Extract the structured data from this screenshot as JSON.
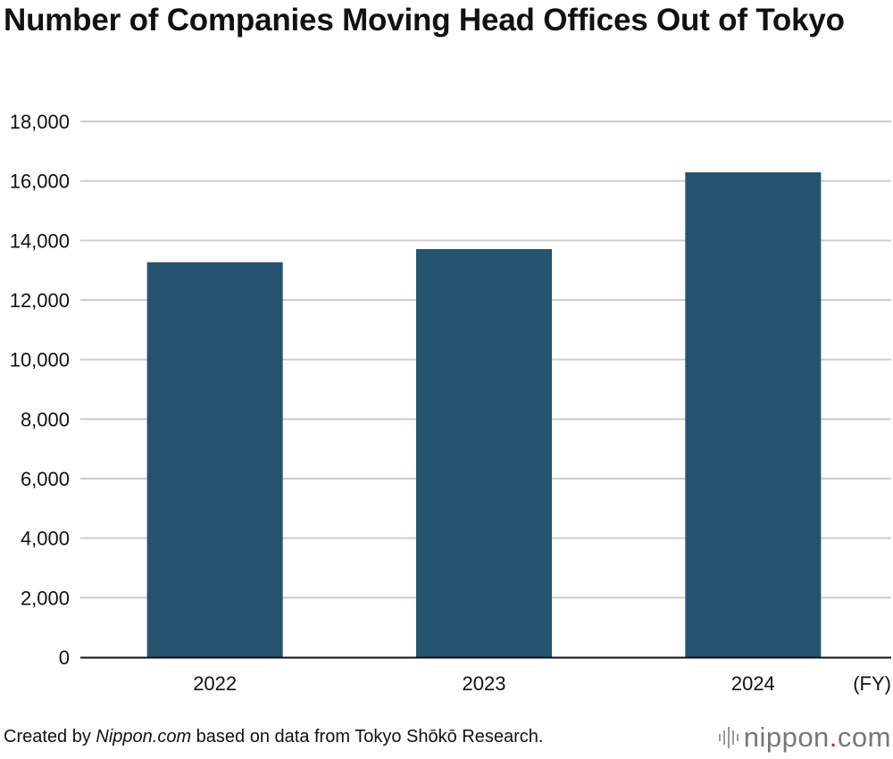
{
  "chart_data": {
    "type": "bar",
    "title": "Number of Companies Moving Head Offices Out of Tokyo",
    "categories": [
      "2022",
      "2023",
      "2024"
    ],
    "values": [
      13270,
      13710,
      16290
    ],
    "xlabel": "(FY)",
    "ylabel": "",
    "ylim": [
      0,
      18000
    ],
    "yticks": [
      "0",
      "2,000",
      "4,000",
      "6,000",
      "8,000",
      "10,000",
      "12,000",
      "14,000",
      "16,000",
      "18,000"
    ],
    "ytick_values": [
      0,
      2000,
      4000,
      6000,
      8000,
      10000,
      12000,
      14000,
      16000,
      18000
    ],
    "grid": true,
    "bar_color": "#24546f",
    "grid_color": "#cccccc"
  },
  "footer": {
    "prefix": "Created by ",
    "italic": "Nippon.com",
    "suffix": " based on data from Tokyo Shōkō Research."
  },
  "brand": {
    "name": "nippon",
    "dot": ".",
    "tld": "com",
    "icon": "sound-wave-icon",
    "dot_color": "#d0202a"
  }
}
